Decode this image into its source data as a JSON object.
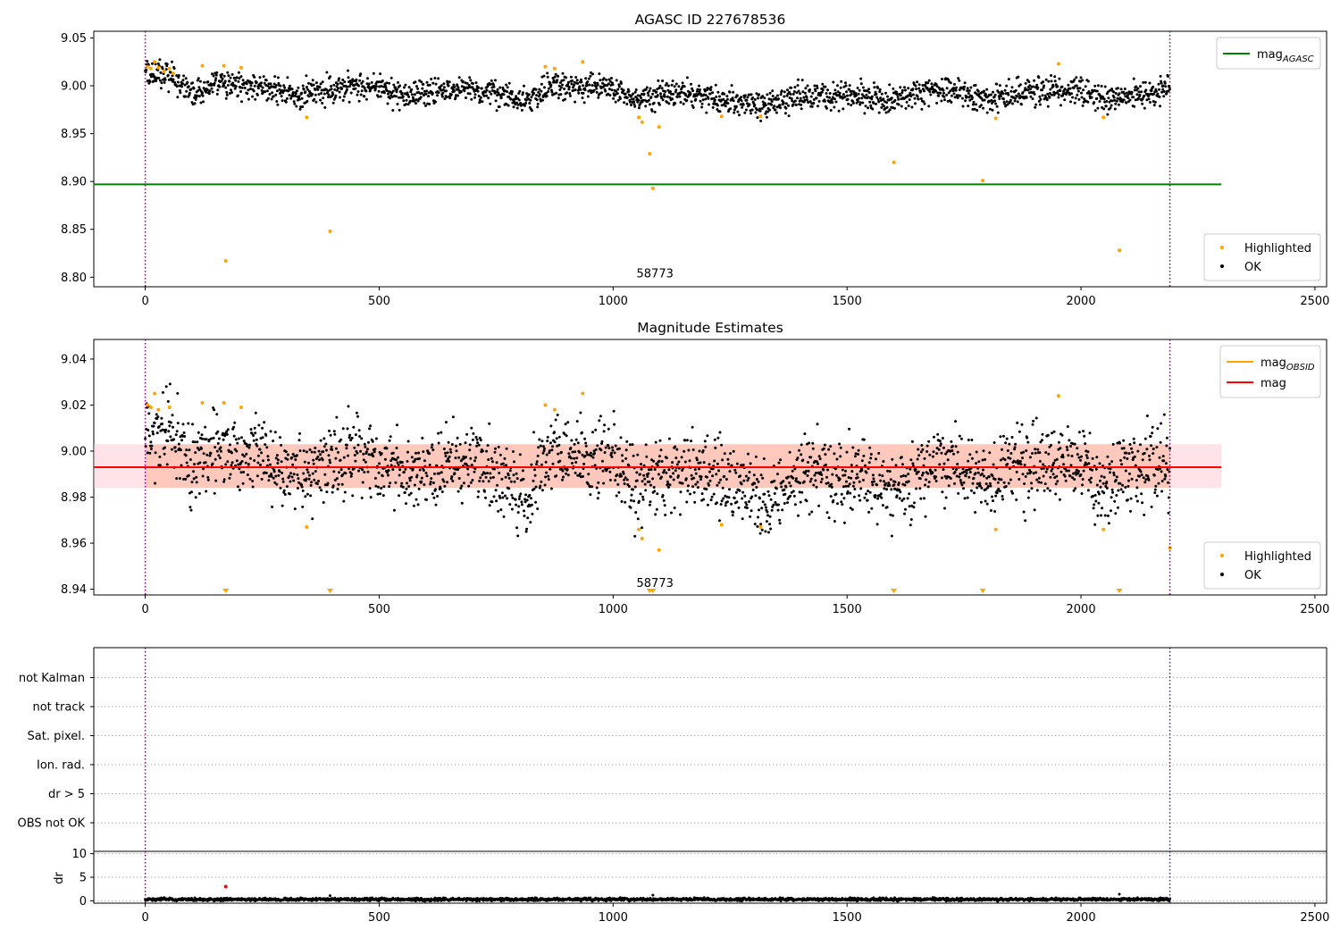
{
  "figure": {
    "background": "#ffffff"
  },
  "chart_data": [
    {
      "type": "scatter",
      "title": "AGASC ID 227678536",
      "xlim": [
        -110,
        2525
      ],
      "ylim": [
        8.79,
        9.057
      ],
      "xticks": [
        0,
        500,
        1000,
        1500,
        2000,
        2500
      ],
      "yticks": [
        8.8,
        8.85,
        8.9,
        8.95,
        9.0,
        9.05
      ],
      "ytick_labels": [
        "8.80",
        "8.85",
        "8.90",
        "8.95",
        "9.00",
        "9.05"
      ],
      "grid": false,
      "legend_lines": {
        "placement": "upper right",
        "entries": [
          {
            "label": "mag",
            "sub": "AGASC",
            "color": "#008000"
          }
        ]
      },
      "legend_points": {
        "placement": "lower right",
        "entries": [
          {
            "label": "Highlighted",
            "color": "#ffa500"
          },
          {
            "label": "OK",
            "color": "#000000"
          }
        ]
      },
      "hline": {
        "y": 8.897,
        "x_range": [
          -110,
          2300
        ],
        "color": "#008000"
      },
      "vlines": {
        "x": [
          0,
          2190
        ],
        "color": "#800080",
        "style": "dotted"
      },
      "annotation": {
        "text": "58773",
        "x": 1050,
        "y": 8.8
      },
      "ok_points": {
        "color": "#000000",
        "x_range": [
          0,
          2190
        ],
        "count": 2190,
        "noise": 0.007,
        "trend": [
          [
            0,
            9.012
          ],
          [
            60,
            9.01
          ],
          [
            100,
            8.99
          ],
          [
            150,
            9.002
          ],
          [
            250,
            8.998
          ],
          [
            330,
            8.99
          ],
          [
            400,
            8.997
          ],
          [
            450,
            9.002
          ],
          [
            560,
            8.99
          ],
          [
            700,
            8.998
          ],
          [
            820,
            8.982
          ],
          [
            860,
            9.0
          ],
          [
            1000,
            8.997
          ],
          [
            1050,
            8.985
          ],
          [
            1150,
            8.993
          ],
          [
            1300,
            8.98
          ],
          [
            1330,
            8.978
          ],
          [
            1400,
            8.99
          ],
          [
            1500,
            8.99
          ],
          [
            1600,
            8.985
          ],
          [
            1700,
            8.998
          ],
          [
            1800,
            8.985
          ],
          [
            1900,
            8.995
          ],
          [
            2000,
            8.993
          ],
          [
            2060,
            8.985
          ],
          [
            2120,
            8.993
          ],
          [
            2190,
            8.995
          ]
        ]
      },
      "highlighted": {
        "color": "#ffa500",
        "x": [
          5,
          12,
          20,
          28,
          40,
          52,
          60,
          122,
          168,
          172,
          205,
          345,
          395,
          855,
          875,
          935,
          1055,
          1062,
          1078,
          1085,
          1098,
          1232,
          1315,
          1600,
          1790,
          1818,
          1952,
          2048,
          2082
        ],
        "y": [
          9.02,
          9.018,
          9.025,
          9.019,
          9.015,
          9.018,
          9.013,
          9.021,
          9.021,
          8.817,
          9.019,
          8.967,
          8.848,
          9.02,
          9.018,
          9.025,
          8.967,
          8.962,
          8.929,
          8.893,
          8.957,
          8.968,
          8.968,
          8.92,
          8.901,
          8.966,
          9.023,
          8.967,
          8.828
        ]
      }
    },
    {
      "type": "scatter",
      "title": "Magnitude Estimates",
      "xlim": [
        -110,
        2525
      ],
      "ylim": [
        8.9375,
        9.0485
      ],
      "xticks": [
        0,
        500,
        1000,
        1500,
        2000,
        2500
      ],
      "yticks": [
        8.94,
        8.96,
        8.98,
        9.0,
        9.02,
        9.04
      ],
      "ytick_labels": [
        "8.94",
        "8.96",
        "8.98",
        "9.00",
        "9.02",
        "9.04"
      ],
      "grid": false,
      "legend_lines": {
        "placement": "upper right",
        "entries": [
          {
            "label": "mag",
            "sub": "OBSID",
            "color": "#ffa500"
          },
          {
            "label": "mag",
            "sub": "",
            "color": "#ff0000"
          }
        ]
      },
      "legend_points": {
        "placement": "lower right",
        "entries": [
          {
            "label": "Highlighted",
            "color": "#ffa500"
          },
          {
            "label": "OK",
            "color": "#000000"
          }
        ]
      },
      "mean_line": {
        "y": 8.993,
        "x_range": [
          -110,
          2300
        ],
        "color": "#ff0000"
      },
      "mean_band": {
        "y_range": [
          8.984,
          9.003
        ],
        "x_range": [
          -110,
          2300
        ],
        "color": "#ffc0cb"
      },
      "obsid_band": {
        "y_range": [
          8.984,
          9.003
        ],
        "x_range": [
          0,
          2190
        ],
        "color": "#ffa07a"
      },
      "vlines": {
        "x": [
          0,
          2190
        ],
        "color": "#800080",
        "style": "dotted"
      },
      "annotation": {
        "text": "58773",
        "x": 1050,
        "y": 8.941
      },
      "ok_points": {
        "color": "#000000",
        "x_range": [
          0,
          2190
        ],
        "count": 2190,
        "noise": 0.0085,
        "trend": [
          [
            0,
            9.008
          ],
          [
            60,
            9.01
          ],
          [
            100,
            8.99
          ],
          [
            150,
            9.002
          ],
          [
            250,
            8.998
          ],
          [
            330,
            8.988
          ],
          [
            400,
            8.997
          ],
          [
            450,
            9.0
          ],
          [
            560,
            8.988
          ],
          [
            700,
            8.998
          ],
          [
            820,
            8.98
          ],
          [
            860,
            8.998
          ],
          [
            1000,
            8.997
          ],
          [
            1050,
            8.985
          ],
          [
            1150,
            8.993
          ],
          [
            1300,
            8.982
          ],
          [
            1330,
            8.976
          ],
          [
            1400,
            8.99
          ],
          [
            1500,
            8.99
          ],
          [
            1600,
            8.984
          ],
          [
            1700,
            8.998
          ],
          [
            1800,
            8.985
          ],
          [
            1900,
            8.995
          ],
          [
            2000,
            8.993
          ],
          [
            2060,
            8.984
          ],
          [
            2120,
            8.992
          ],
          [
            2190,
            8.995
          ]
        ]
      },
      "highlighted": {
        "color": "#ffa500",
        "x": [
          5,
          12,
          20,
          28,
          52,
          122,
          168,
          205,
          345,
          855,
          875,
          935,
          1055,
          1062,
          1098,
          1232,
          1315,
          1818,
          1952,
          2048,
          2190
        ],
        "y": [
          9.02,
          9.019,
          9.025,
          9.018,
          9.019,
          9.021,
          9.021,
          9.019,
          8.967,
          9.02,
          9.018,
          9.025,
          8.966,
          8.962,
          8.957,
          8.968,
          8.967,
          8.966,
          9.024,
          8.966,
          8.958
        ]
      },
      "low_markers": {
        "color": "#ffa500",
        "x": [
          172,
          395,
          1078,
          1085,
          1600,
          1790,
          2082
        ]
      }
    },
    {
      "type": "scatter",
      "title": "",
      "xlim": [
        -110,
        2525
      ],
      "categories": [
        "not Kalman",
        "not track",
        "Sat. pixel.",
        "Ion. rad.",
        "dr > 5",
        "OBS not OK"
      ],
      "grid": "dotted",
      "vlines": {
        "x": [
          0,
          2190
        ],
        "color": "#800080",
        "style": "dotted"
      }
    },
    {
      "type": "scatter",
      "title": "",
      "ylabel": "dr",
      "xlim": [
        -110,
        2525
      ],
      "ylim": [
        -0.5,
        10.5
      ],
      "xticks": [
        0,
        500,
        1000,
        1500,
        2000,
        2500
      ],
      "yticks": [
        0,
        5,
        10
      ],
      "ytick_labels": [
        "0",
        "5",
        "10"
      ],
      "grid": "dotted",
      "vlines": {
        "x": [
          0,
          2190
        ],
        "color": "#800080",
        "style": "dotted"
      },
      "ok_points": {
        "color": "#000000",
        "x_range": [
          0,
          2190
        ],
        "count": 2190,
        "base": 0.3,
        "noise": 0.15
      },
      "outliers": {
        "color": "#000000",
        "x": [
          395,
          1085,
          2082
        ],
        "y": [
          1.1,
          1.2,
          1.4
        ]
      },
      "highlighted": {
        "color": "#ff0000",
        "x": [
          172
        ],
        "y": [
          3.0
        ]
      }
    }
  ]
}
